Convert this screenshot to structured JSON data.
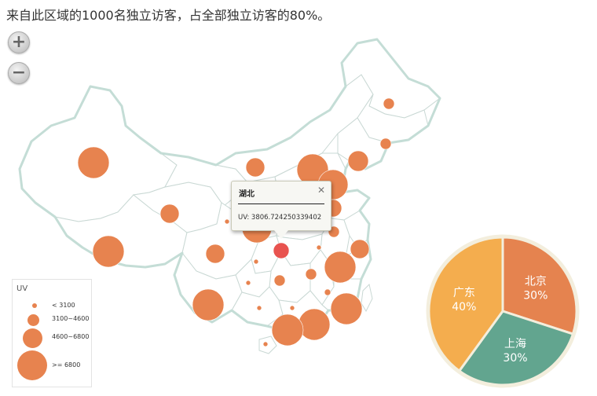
{
  "title": "来自此区域的1000名独立访客，占全部独立访客的80%。",
  "zoom": {
    "in_label": "+",
    "out_label": "−",
    "in_icon": "zoom-in-icon",
    "out_icon": "zoom-out-icon"
  },
  "legend": {
    "title": "UV",
    "items": [
      {
        "label": "< 3100"
      },
      {
        "label": "3100~4600"
      },
      {
        "label": "4600~6800"
      },
      {
        "label": ">= 6800"
      }
    ]
  },
  "tooltip": {
    "title": "湖北",
    "value": "UV: 3806.724250339402",
    "close_label": "✕"
  },
  "colors": {
    "bubble": "#e7834f",
    "highlight": "#e8534f",
    "border": "#c4ddd6"
  },
  "pie": {
    "slices": [
      {
        "name": "北京",
        "percent": "30%",
        "value": 30,
        "color": "#e5834f"
      },
      {
        "name": "上海",
        "percent": "30%",
        "value": 30,
        "color": "#62a58f"
      },
      {
        "name": "广东",
        "percent": "40%",
        "value": 40,
        "color": "#f4ad4e"
      }
    ]
  }
}
